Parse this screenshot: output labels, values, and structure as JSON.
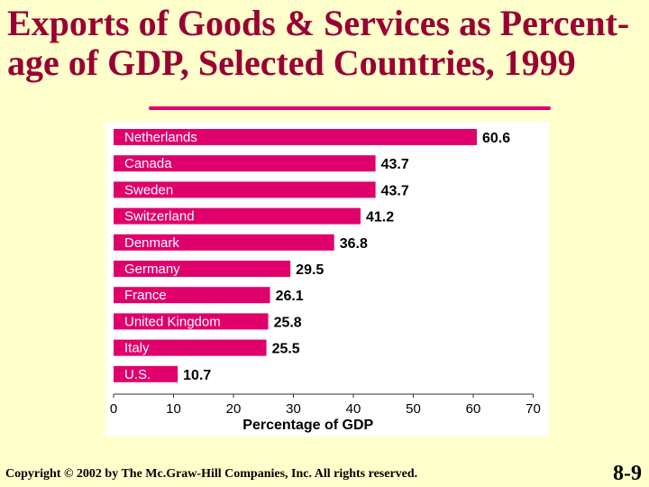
{
  "slide": {
    "title_line1": "Exports of Goods & Services as Percent-",
    "title_line2": "age of GDP, Selected Countries, 1999",
    "footer": "Copyright © 2002 by The Mc.Graw-Hill Companies, Inc.  All rights reserved.",
    "slide_number": "8-9"
  },
  "colors": {
    "background": "#FFFFCC",
    "title": "#990033",
    "bar": "#E0006B",
    "rule": "#E0006B"
  },
  "chart_data": {
    "type": "bar",
    "orientation": "horizontal",
    "title": "Exports of Goods & Services as Percentage of GDP, Selected Countries, 1999",
    "categories": [
      "Netherlands",
      "Canada",
      "Sweden",
      "Switzerland",
      "Denmark",
      "Germany",
      "France",
      "United Kingdom",
      "Italy",
      "U.S."
    ],
    "values": [
      60.6,
      43.7,
      43.7,
      41.2,
      36.8,
      29.5,
      26.1,
      25.8,
      25.5,
      10.7
    ],
    "value_labels": [
      "60.6",
      "43.7",
      "43.7",
      "41.2",
      "36.8",
      "29.5",
      "26.1",
      "25.8",
      "25.5",
      "10.7"
    ],
    "xlabel": "Percentage of GDP",
    "ylabel": "",
    "xlim": [
      0,
      70
    ],
    "xticks": [
      0,
      10,
      20,
      30,
      40,
      50,
      60,
      70
    ],
    "grid": false
  }
}
